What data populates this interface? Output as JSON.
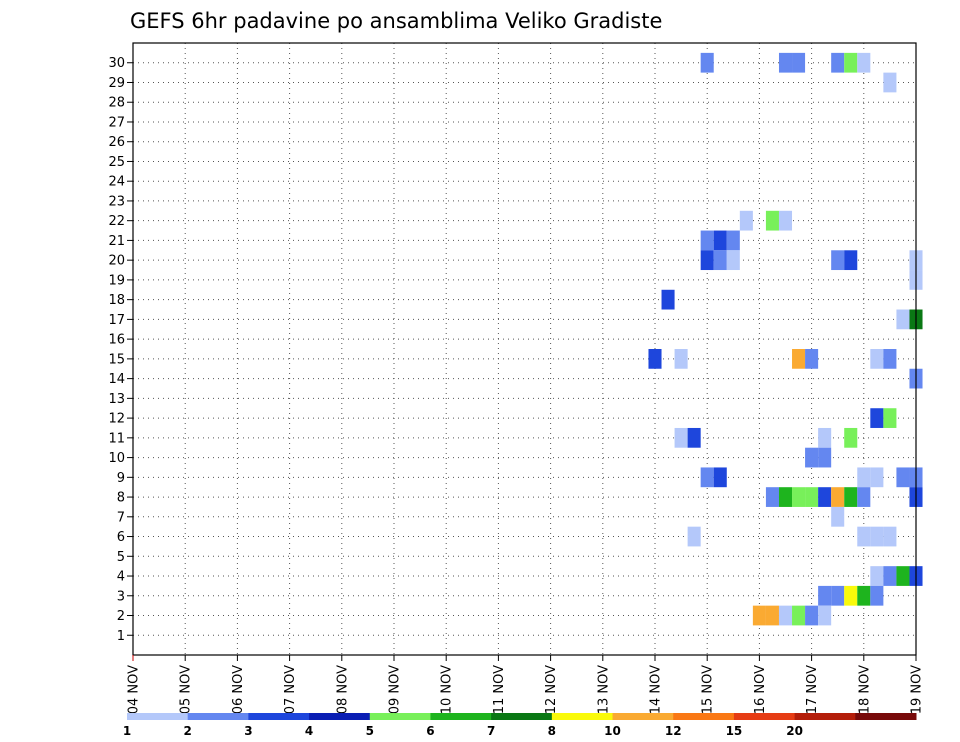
{
  "chart_data": {
    "type": "heatmap",
    "title": "GEFS 6hr padavine po ansamblima Veliko Gradiste",
    "xlabel": "",
    "ylabel": "",
    "x_ticks": [
      "04 NOV",
      "05 NOV",
      "06 NOV",
      "07 NOV",
      "08 NOV",
      "09 NOV",
      "10 NOV",
      "11 NOV",
      "12 NOV",
      "13 NOV",
      "14 NOV",
      "15 NOV",
      "16 NOV",
      "17 NOV",
      "18 NOV",
      "19 NOV"
    ],
    "y_ticks": [
      1,
      2,
      3,
      4,
      5,
      6,
      7,
      8,
      9,
      10,
      11,
      12,
      13,
      14,
      15,
      16,
      17,
      18,
      19,
      20,
      21,
      22,
      23,
      24,
      25,
      26,
      27,
      28,
      29,
      30
    ],
    "x_unit": "6-hour step from 04 NOV 00Z (4 steps per day)",
    "grid": true,
    "colorbar": {
      "labels": [
        "1",
        "2",
        "3",
        "4",
        "5",
        "6",
        "7",
        "8",
        "10",
        "12",
        "15",
        "20"
      ],
      "colors": [
        "#b4c8fa",
        "#6487f0",
        "#1e46dc",
        "#0a1eb4",
        "#78f05a",
        "#1eb41e",
        "#0a7814",
        "#fafa0a",
        "#faaa32",
        "#fa7814",
        "#e63c14",
        "#b41e0a",
        "#780a0a"
      ]
    },
    "cells": [
      {
        "m": 30,
        "t": 44,
        "c": 2
      },
      {
        "m": 30,
        "t": 50,
        "c": 2
      },
      {
        "m": 30,
        "t": 51,
        "c": 2
      },
      {
        "m": 30,
        "t": 54,
        "c": 2
      },
      {
        "m": 30,
        "t": 55,
        "c": 5
      },
      {
        "m": 30,
        "t": 56,
        "c": 1
      },
      {
        "m": 29,
        "t": 58,
        "c": 1
      },
      {
        "m": 22,
        "t": 47,
        "c": 1
      },
      {
        "m": 22,
        "t": 49,
        "c": 5
      },
      {
        "m": 22,
        "t": 50,
        "c": 1
      },
      {
        "m": 21,
        "t": 44,
        "c": 2
      },
      {
        "m": 21,
        "t": 45,
        "c": 3
      },
      {
        "m": 21,
        "t": 46,
        "c": 2
      },
      {
        "m": 20,
        "t": 44,
        "c": 3
      },
      {
        "m": 20,
        "t": 45,
        "c": 2
      },
      {
        "m": 20,
        "t": 46,
        "c": 1
      },
      {
        "m": 20,
        "t": 54,
        "c": 2
      },
      {
        "m": 20,
        "t": 55,
        "c": 3
      },
      {
        "m": 20,
        "t": 60,
        "c": 1
      },
      {
        "m": 19,
        "t": 60,
        "c": 1
      },
      {
        "m": 18,
        "t": 41,
        "c": 3
      },
      {
        "m": 17,
        "t": 59,
        "c": 1
      },
      {
        "m": 17,
        "t": 60,
        "c": 7
      },
      {
        "m": 15,
        "t": 40,
        "c": 3
      },
      {
        "m": 15,
        "t": 42,
        "c": 1
      },
      {
        "m": 15,
        "t": 51,
        "c": 9
      },
      {
        "m": 15,
        "t": 52,
        "c": 2
      },
      {
        "m": 15,
        "t": 57,
        "c": 1
      },
      {
        "m": 15,
        "t": 58,
        "c": 2
      },
      {
        "m": 14,
        "t": 60,
        "c": 2
      },
      {
        "m": 12,
        "t": 57,
        "c": 3
      },
      {
        "m": 12,
        "t": 58,
        "c": 5
      },
      {
        "m": 11,
        "t": 42,
        "c": 1
      },
      {
        "m": 11,
        "t": 43,
        "c": 3
      },
      {
        "m": 11,
        "t": 53,
        "c": 1
      },
      {
        "m": 11,
        "t": 55,
        "c": 5
      },
      {
        "m": 10,
        "t": 52,
        "c": 2
      },
      {
        "m": 10,
        "t": 53,
        "c": 2
      },
      {
        "m": 9,
        "t": 44,
        "c": 2
      },
      {
        "m": 9,
        "t": 45,
        "c": 3
      },
      {
        "m": 9,
        "t": 56,
        "c": 1
      },
      {
        "m": 9,
        "t": 57,
        "c": 1
      },
      {
        "m": 9,
        "t": 59,
        "c": 2
      },
      {
        "m": 9,
        "t": 60,
        "c": 2
      },
      {
        "m": 8,
        "t": 49,
        "c": 2
      },
      {
        "m": 8,
        "t": 50,
        "c": 6
      },
      {
        "m": 8,
        "t": 51,
        "c": 5
      },
      {
        "m": 8,
        "t": 52,
        "c": 5
      },
      {
        "m": 8,
        "t": 53,
        "c": 3
      },
      {
        "m": 8,
        "t": 54,
        "c": 9
      },
      {
        "m": 8,
        "t": 55,
        "c": 6
      },
      {
        "m": 8,
        "t": 56,
        "c": 2
      },
      {
        "m": 8,
        "t": 60,
        "c": 3
      },
      {
        "m": 7,
        "t": 54,
        "c": 1
      },
      {
        "m": 6,
        "t": 43,
        "c": 1
      },
      {
        "m": 6,
        "t": 56,
        "c": 1
      },
      {
        "m": 6,
        "t": 57,
        "c": 1
      },
      {
        "m": 6,
        "t": 58,
        "c": 1
      },
      {
        "m": 4,
        "t": 57,
        "c": 1
      },
      {
        "m": 4,
        "t": 58,
        "c": 2
      },
      {
        "m": 4,
        "t": 59,
        "c": 6
      },
      {
        "m": 4,
        "t": 60,
        "c": 3
      },
      {
        "m": 3,
        "t": 53,
        "c": 2
      },
      {
        "m": 3,
        "t": 54,
        "c": 2
      },
      {
        "m": 3,
        "t": 55,
        "c": 8
      },
      {
        "m": 3,
        "t": 56,
        "c": 6
      },
      {
        "m": 3,
        "t": 57,
        "c": 2
      },
      {
        "m": 2,
        "t": 48,
        "c": 9
      },
      {
        "m": 2,
        "t": 49,
        "c": 9
      },
      {
        "m": 2,
        "t": 50,
        "c": 1
      },
      {
        "m": 2,
        "t": 51,
        "c": 5
      },
      {
        "m": 2,
        "t": 52,
        "c": 2
      },
      {
        "m": 2,
        "t": 53,
        "c": 1
      }
    ]
  }
}
